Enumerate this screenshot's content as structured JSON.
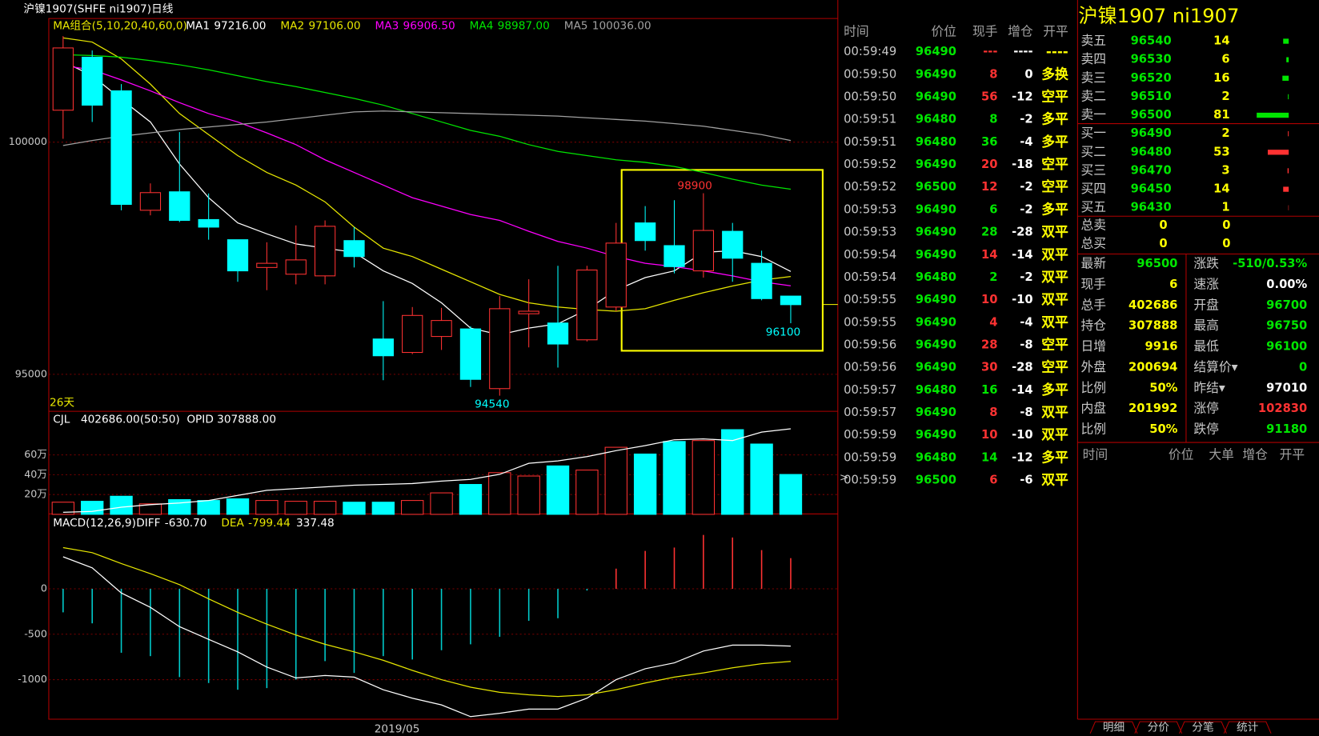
{
  "header": {
    "title": "沪镍1907(SHFE ni1907)日线"
  },
  "chart_data": [
    {
      "type": "candlestick",
      "legend_title": "MA组合(5,10,20,40,60,0)",
      "days_label": "26天",
      "x_label": "2019/05",
      "open": [
        100688,
        101830,
        101105,
        98533,
        98931,
        98333,
        97899,
        97301,
        97156,
        97120,
        97880,
        95761,
        95471,
        95815,
        95978,
        94692,
        96304,
        96105,
        95743,
        96449,
        98261,
        97772,
        97228,
        98080,
        97391,
        96685
      ],
      "high": [
        102283,
        101975,
        101250,
        99112,
        100217,
        98895,
        97899,
        97844,
        98207,
        98315,
        98170,
        96576,
        96449,
        96431,
        96033,
        96685,
        97047,
        97337,
        97337,
        98261,
        98623,
        98750,
        98900,
        98261,
        97663,
        96685
      ],
      "low": [
        100072,
        100435,
        98533,
        98424,
        98279,
        97899,
        96993,
        96812,
        96938,
        96938,
        97301,
        94873,
        95435,
        95525,
        94728,
        94540,
        95580,
        95145,
        95707,
        96359,
        97663,
        97174,
        97083,
        96993,
        96594,
        96100
      ],
      "close": [
        102029,
        100797,
        98659,
        98913,
        98315,
        98170,
        97228,
        97391,
        97464,
        98188,
        97536,
        95399,
        96268,
        96159,
        94891,
        96413,
        96359,
        95652,
        97246,
        97826,
        97880,
        97319,
        98098,
        97500,
        96630,
        96500
      ],
      "up_color": "#ff3232",
      "down_color": "#00ffff",
      "ylim": [
        94203,
        102663
      ],
      "yticks": [
        100000,
        95000
      ],
      "grid": true,
      "series": [
        {
          "name": "MA1",
          "value_label": "97216.00",
          "color": "#ffffff",
          "values": [
            101739,
            101431,
            100924,
            100435,
            99529,
            98804,
            98261,
            98025,
            97808,
            97717,
            97627,
            97228,
            96957,
            96540,
            95996,
            95851,
            95996,
            96087,
            96395,
            96812,
            97083,
            97228,
            97627,
            97663,
            97536,
            97216
          ]
        },
        {
          "name": "MA2",
          "value_label": "97106.00",
          "color": "#e6e600",
          "values": [
            102246,
            102156,
            101793,
            101250,
            100616,
            100163,
            99710,
            99348,
            99076,
            98714,
            98170,
            97717,
            97536,
            97264,
            96993,
            96721,
            96540,
            96449,
            96395,
            96359,
            96413,
            96594,
            96757,
            96902,
            97029,
            97106
          ]
        },
        {
          "name": "MA3",
          "value_label": "96906.50",
          "color": "#ff00ff",
          "values": [
            101649,
            101558,
            101341,
            101105,
            100851,
            100616,
            100435,
            100199,
            99946,
            99620,
            99348,
            99076,
            98804,
            98623,
            98442,
            98315,
            98080,
            97862,
            97717,
            97536,
            97391,
            97319,
            97228,
            97120,
            96993,
            96906.5
          ]
        },
        {
          "name": "MA4",
          "value_label": "98987.00",
          "color": "#00e600",
          "values": [
            101884,
            101866,
            101830,
            101757,
            101667,
            101558,
            101431,
            101304,
            101196,
            101069,
            100942,
            100797,
            100616,
            100435,
            100253,
            100127,
            99946,
            99801,
            99710,
            99620,
            99565,
            99475,
            99348,
            99203,
            99076,
            98987
          ]
        },
        {
          "name": "MA5",
          "value_label": "100036.00",
          "color": "#a0a0a0",
          "values": [
            99928,
            100036,
            100127,
            100199,
            100272,
            100326,
            100380,
            100435,
            100507,
            100580,
            100652,
            100670,
            100652,
            100634,
            100616,
            100598,
            100580,
            100562,
            100525,
            100489,
            100453,
            100399,
            100344,
            100253,
            100163,
            100036
          ]
        }
      ]
    },
    {
      "type": "bar",
      "title": "CJL",
      "subtitle": "402686.00(50:50)",
      "note": "OPID 307888.00",
      "values": [
        12.3,
        13.2,
        18.3,
        10.6,
        14.9,
        14,
        15.7,
        14,
        13.2,
        13.2,
        12.3,
        12.3,
        14,
        21.7,
        30.2,
        42.1,
        38.7,
        48.9,
        44.7,
        67.7,
        60.9,
        73.6,
        74.5,
        85.5,
        71,
        40.27
      ],
      "line_values": [
        2.1,
        3.0,
        7.2,
        9.8,
        11.5,
        14.0,
        19.1,
        24.3,
        26.0,
        27.7,
        29.4,
        30.2,
        31.1,
        33.6,
        35.3,
        40.4,
        51.5,
        54.0,
        58.3,
        64.3,
        69.4,
        75.3,
        76.2,
        74.5,
        83.0,
        86.4
      ],
      "line_color": "#ffffff",
      "ylim": [
        0,
        104
      ],
      "yticks": [
        {
          "value": 60,
          "label": "60万"
        },
        {
          "value": 40,
          "label": "40万"
        },
        {
          "value": 20,
          "label": "20万"
        }
      ],
      "grid": true
    },
    {
      "type": "macd",
      "title": "MACD(12,26,9)",
      "value_label": "337.48",
      "values": [
        -259,
        -380,
        -704,
        -741,
        -972,
        -1037,
        -1111,
        -1093,
        -1000,
        -796,
        -926,
        -741,
        -778,
        -676,
        -611,
        -528,
        -352,
        -324,
        -19,
        222,
        417,
        454,
        593,
        565,
        426,
        337.48
      ],
      "up_color": "#ff3232",
      "down_color": "#00cccc",
      "series": [
        {
          "name": "DIFF",
          "value_label": "-630.70",
          "color": "#ffffff",
          "values": [
            352,
            231,
            -46,
            -204,
            -417,
            -556,
            -694,
            -861,
            -981,
            -954,
            -972,
            -1111,
            -1204,
            -1278,
            -1407,
            -1370,
            -1324,
            -1324,
            -1204,
            -1000,
            -880,
            -815,
            -685,
            -620,
            -620,
            -630.7
          ]
        },
        {
          "name": "DEA",
          "value_label": "-799.44",
          "color": "#e6e600",
          "values": [
            454,
            398,
            278,
            167,
            46,
            -111,
            -259,
            -389,
            -509,
            -611,
            -694,
            -787,
            -898,
            -1000,
            -1083,
            -1139,
            -1167,
            -1185,
            -1167,
            -1111,
            -1037,
            -972,
            -926,
            -870,
            -824,
            -799.44
          ]
        }
      ],
      "ylim": [
        -1435,
        824
      ],
      "yticks": [
        0,
        -500,
        -1000
      ],
      "grid": true
    }
  ],
  "ticks_table": {
    "columns": [
      "时间",
      "价位",
      "现手",
      "增仓",
      "开平"
    ],
    "rows": [
      {
        "time": "00:59:49",
        "price": "96490",
        "volume": "---",
        "change": "----",
        "type": "----",
        "color": "#ff3232"
      },
      {
        "time": "00:59:50",
        "price": "96490",
        "volume": "8",
        "change": "0",
        "type": "多换",
        "color": "#ff3232"
      },
      {
        "time": "00:59:50",
        "price": "96490",
        "volume": "56",
        "change": "-12",
        "type": "空平",
        "color": "#ff3232"
      },
      {
        "time": "00:59:51",
        "price": "96480",
        "volume": "8",
        "change": "-2",
        "type": "多平",
        "color": "#00e600"
      },
      {
        "time": "00:59:51",
        "price": "96480",
        "volume": "36",
        "change": "-4",
        "type": "多平",
        "color": "#00e600"
      },
      {
        "time": "00:59:52",
        "price": "96490",
        "volume": "20",
        "change": "-18",
        "type": "空平",
        "color": "#ff3232"
      },
      {
        "time": "00:59:52",
        "price": "96500",
        "volume": "12",
        "change": "-2",
        "type": "空平",
        "color": "#ff3232"
      },
      {
        "time": "00:59:53",
        "price": "96490",
        "volume": "6",
        "change": "-2",
        "type": "多平",
        "color": "#00e600"
      },
      {
        "time": "00:59:53",
        "price": "96490",
        "volume": "28",
        "change": "-28",
        "type": "双平",
        "color": "#00e600"
      },
      {
        "time": "00:59:54",
        "price": "96490",
        "volume": "14",
        "change": "-14",
        "type": "双平",
        "color": "#ff3232"
      },
      {
        "time": "00:59:54",
        "price": "96480",
        "volume": "2",
        "change": "-2",
        "type": "双平",
        "color": "#00e600"
      },
      {
        "time": "00:59:55",
        "price": "96490",
        "volume": "10",
        "change": "-10",
        "type": "双平",
        "color": "#ff3232"
      },
      {
        "time": "00:59:55",
        "price": "96490",
        "volume": "4",
        "change": "-4",
        "type": "双平",
        "color": "#ff3232"
      },
      {
        "time": "00:59:56",
        "price": "96490",
        "volume": "28",
        "change": "-8",
        "type": "空平",
        "color": "#ff3232"
      },
      {
        "time": "00:59:56",
        "price": "96490",
        "volume": "30",
        "change": "-28",
        "type": "空平",
        "color": "#ff3232"
      },
      {
        "time": "00:59:57",
        "price": "96480",
        "volume": "16",
        "change": "-14",
        "type": "多平",
        "color": "#00e600"
      },
      {
        "time": "00:59:57",
        "price": "96490",
        "volume": "8",
        "change": "-8",
        "type": "双平",
        "color": "#ff3232"
      },
      {
        "time": "00:59:59",
        "price": "96490",
        "volume": "10",
        "change": "-10",
        "type": "双平",
        "color": "#ff3232"
      },
      {
        "time": "00:59:59",
        "price": "96480",
        "volume": "14",
        "change": "-12",
        "type": "多平",
        "color": "#00e600"
      },
      {
        "time": "00:59:59",
        "price": "96500",
        "volume": "6",
        "change": "-6",
        "type": "双平",
        "color": "#ff3232"
      }
    ]
  },
  "quote": {
    "title": "沪镍1907  ni1907",
    "sell": [
      {
        "label": "卖五",
        "price": "96540",
        "qty": 14
      },
      {
        "label": "卖四",
        "price": "96530",
        "qty": 6
      },
      {
        "label": "卖三",
        "price": "96520",
        "qty": 16
      },
      {
        "label": "卖二",
        "price": "96510",
        "qty": 2
      },
      {
        "label": "卖一",
        "price": "96500",
        "qty": 81
      }
    ],
    "buy": [
      {
        "label": "买一",
        "price": "96490",
        "qty": 2
      },
      {
        "label": "买二",
        "price": "96480",
        "qty": 53
      },
      {
        "label": "买三",
        "price": "96470",
        "qty": 3
      },
      {
        "label": "买四",
        "price": "96450",
        "qty": 14
      },
      {
        "label": "买五",
        "price": "96430",
        "qty": 1
      }
    ],
    "sell_color": "#00e600",
    "buy_color": "#ff3232",
    "totals": [
      {
        "label": "总卖",
        "a": "0",
        "b": "0"
      },
      {
        "label": "总买",
        "a": "0",
        "b": "0"
      }
    ],
    "stats": [
      [
        {
          "label": "最新",
          "value": "96500",
          "color": "#00e600"
        },
        {
          "label": "涨跌",
          "value": "-510/0.53%",
          "color": "#00e600"
        }
      ],
      [
        {
          "label": "现手",
          "value": "6",
          "color": "#ffff00"
        },
        {
          "label": "速涨",
          "value": "0.00%",
          "color": "#ffffff"
        }
      ],
      [
        {
          "label": "总手",
          "value": "402686",
          "color": "#ffff00"
        },
        {
          "label": "开盘",
          "value": "96700",
          "color": "#00e600"
        }
      ],
      [
        {
          "label": "持仓",
          "value": "307888",
          "color": "#ffff00"
        },
        {
          "label": "最高",
          "value": "96750",
          "color": "#00e600"
        }
      ],
      [
        {
          "label": "日增",
          "value": "9916",
          "color": "#ffff00"
        },
        {
          "label": "最低",
          "value": "96100",
          "color": "#00e600"
        }
      ],
      [
        {
          "label": "外盘",
          "value": "200694",
          "color": "#ffff00"
        },
        {
          "label": "结算价▾",
          "value": "0",
          "color": "#00e600"
        }
      ],
      [
        {
          "label": "比例",
          "value": "50%",
          "color": "#ffff00"
        },
        {
          "label": "昨结▾",
          "value": "97010",
          "color": "#ffffff"
        }
      ],
      [
        {
          "label": "内盘",
          "value": "201992",
          "color": "#ffff00"
        },
        {
          "label": "涨停",
          "value": "102830",
          "color": "#ff3232"
        }
      ],
      [
        {
          "label": "比例",
          "value": "50%",
          "color": "#ffff00"
        },
        {
          "label": "跌停",
          "value": "91180",
          "color": "#00e600"
        }
      ]
    ],
    "detail_columns": [
      "时间",
      "价位",
      "大单",
      "增仓",
      "开平"
    ],
    "tabs": [
      "明细",
      "分价",
      "分笔",
      "统计"
    ]
  }
}
